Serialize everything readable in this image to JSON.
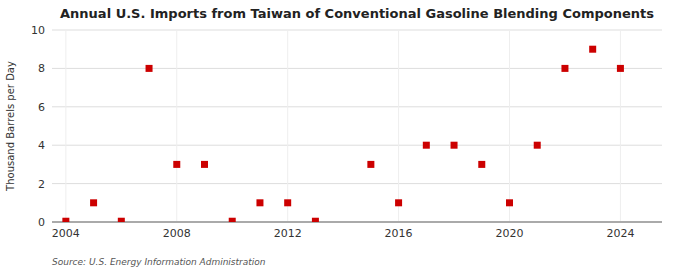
{
  "chart_data": {
    "type": "scatter",
    "title": "Annual U.S. Imports from Taiwan of Conventional Gasoline Blending Components",
    "ylabel": "Thousand Barrels per Day",
    "annotations": [
      "Source: U.S. Energy Information Administration"
    ],
    "x": [
      2004,
      2005,
      2006,
      2007,
      2008,
      2009,
      2010,
      2011,
      2012,
      2013,
      2015,
      2016,
      2017,
      2018,
      2019,
      2020,
      2021,
      2022,
      2023,
      2024
    ],
    "values": [
      0.04,
      1.0,
      0.04,
      8.0,
      3.0,
      3.0,
      0.04,
      1.0,
      1.0,
      0.04,
      3.0,
      1.0,
      4.0,
      4.0,
      3.0,
      1.0,
      4.0,
      8.0,
      9.0,
      8.0
    ],
    "color": "#cc0000",
    "marker": "square",
    "xlim": [
      2003.5,
      2025.5
    ],
    "ylim": [
      0,
      10
    ],
    "xticks": [
      2004,
      2008,
      2012,
      2016,
      2020,
      2024
    ],
    "yticks": [
      0,
      2,
      4,
      6,
      8,
      10
    ],
    "grid": true
  }
}
